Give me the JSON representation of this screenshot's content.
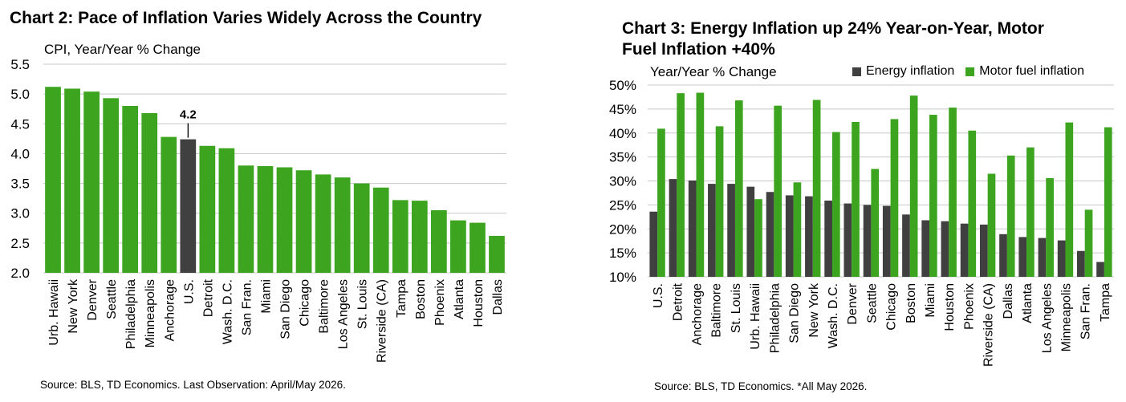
{
  "colors": {
    "green": "#3ca41e",
    "dark": "#404040",
    "grid": "#c8c8c8",
    "annotation": "#000000"
  },
  "chart_data": [
    {
      "type": "bar",
      "title": "Chart 2: Pace of Inflation Varies Widely Across the Country",
      "ylabel": "CPI, Year/Year % Change",
      "source": "Source: BLS, TD Economics. Last Observation: April/May 2026.",
      "ylim": [
        2.0,
        5.5
      ],
      "yticks": [
        "2.0",
        "2.5",
        "3.0",
        "3.5",
        "4.0",
        "4.5",
        "5.0",
        "5.5"
      ],
      "grid": true,
      "categories": [
        "Urb. Hawaii",
        "New York",
        "Denver",
        "Seattle",
        "Philadelphia",
        "Minneapolis",
        "Anchorage",
        "U.S.",
        "Detroit",
        "Wash. D.C.",
        "San Fran.",
        "Miami",
        "San Diego",
        "Chicago",
        "Baltimore",
        "Los Angeles",
        "St. Louis",
        "Riverside (CA)",
        "Tampa",
        "Boston",
        "Phoenix",
        "Atlanta",
        "Houston",
        "Dallas"
      ],
      "values": [
        5.12,
        5.09,
        5.04,
        4.93,
        4.8,
        4.68,
        4.28,
        4.24,
        4.13,
        4.09,
        3.8,
        3.79,
        3.77,
        3.72,
        3.65,
        3.6,
        3.5,
        3.43,
        3.22,
        3.21,
        3.05,
        2.88,
        2.84,
        2.62
      ],
      "highlight_category": "U.S.",
      "annotation": {
        "category": "U.S.",
        "text": "4.2"
      }
    },
    {
      "type": "bar",
      "title": "Chart 3: Energy Inflation up 24% Year-on-Year, Motor Fuel Inflation +40%",
      "ylabel": "Year/Year % Change",
      "source": "Source: BLS, TD Economics. *All May 2026.",
      "ylim": [
        10,
        50
      ],
      "yticks": [
        "10%",
        "15%",
        "20%",
        "25%",
        "30%",
        "35%",
        "40%",
        "45%",
        "50%"
      ],
      "grid": true,
      "legend_position": "top-right",
      "categories": [
        "U.S.",
        "Detroit",
        "Anchorage",
        "Baltimore",
        "St. Louis",
        "Urb. Hawaii",
        "Philadelphia",
        "San Diego",
        "New York",
        "Wash. D.C.",
        "Denver",
        "Seattle",
        "Chicago",
        "Boston",
        "Miami",
        "Houston",
        "Phoenix",
        "Riverside (CA)",
        "Dallas",
        "Atlanta",
        "Los Angeles",
        "Minneapolis",
        "San Fran.",
        "Tampa"
      ],
      "series": [
        {
          "name": "Energy inflation",
          "color": "#404040",
          "values": [
            23.6,
            30.4,
            30.1,
            29.4,
            29.4,
            28.8,
            27.7,
            27.0,
            26.8,
            25.9,
            25.3,
            25.0,
            24.8,
            23.0,
            21.8,
            21.6,
            21.1,
            20.9,
            18.9,
            18.3,
            18.1,
            17.6,
            15.4,
            13.1
          ]
        },
        {
          "name": "Motor fuel inflation",
          "color": "#3ca41e",
          "values": [
            40.9,
            48.3,
            48.4,
            41.4,
            46.8,
            26.2,
            45.7,
            29.7,
            46.9,
            40.2,
            42.3,
            32.5,
            42.9,
            47.8,
            43.8,
            45.3,
            40.5,
            31.5,
            35.3,
            37.0,
            30.6,
            42.2,
            24.0,
            41.2
          ]
        }
      ]
    }
  ]
}
